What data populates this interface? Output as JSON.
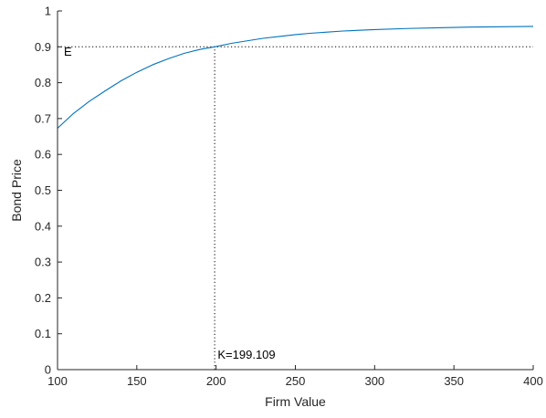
{
  "chart_data": {
    "type": "line",
    "xlabel": "Firm Value",
    "ylabel": "Bond Price",
    "xlim": [
      100,
      400
    ],
    "ylim": [
      0,
      1
    ],
    "x_ticks": [
      100,
      150,
      200,
      250,
      300,
      350,
      400
    ],
    "y_ticks": [
      0,
      0.1,
      0.2,
      0.3,
      0.4,
      0.5,
      0.6,
      0.7,
      0.8,
      0.9,
      1
    ],
    "x_tick_labels": [
      "100",
      "150",
      "200",
      "250",
      "300",
      "350",
      "400"
    ],
    "y_tick_labels": [
      "0",
      "0.1",
      "0.2",
      "0.3",
      "0.4",
      "0.5",
      "0.6",
      "0.7",
      "0.8",
      "0.9",
      "1"
    ],
    "grid": false,
    "series": [
      {
        "color": "#0072BD",
        "x": [
          100,
          110,
          120,
          130,
          140,
          150,
          160,
          170,
          180,
          190,
          199.109,
          210,
          220,
          230,
          240,
          250,
          260,
          270,
          280,
          290,
          300,
          320,
          340,
          360,
          380,
          400
        ],
        "y": [
          0.673,
          0.714,
          0.748,
          0.777,
          0.805,
          0.829,
          0.85,
          0.867,
          0.882,
          0.893,
          0.9,
          0.91,
          0.917,
          0.924,
          0.929,
          0.934,
          0.938,
          0.941,
          0.944,
          0.946,
          0.948,
          0.951,
          0.953,
          0.955,
          0.956,
          0.957
        ]
      }
    ],
    "reference_lines": [
      {
        "orientation": "horizontal",
        "value": 0.9,
        "style": "dotted",
        "color": "#000000"
      },
      {
        "orientation": "vertical",
        "value": 199.109,
        "style": "dotted",
        "color": "#000000"
      }
    ],
    "annotations": [
      {
        "text": "E",
        "x": 104,
        "y": 0.875
      },
      {
        "text": "K=199.109",
        "x": 201,
        "y": 0.03
      }
    ]
  }
}
